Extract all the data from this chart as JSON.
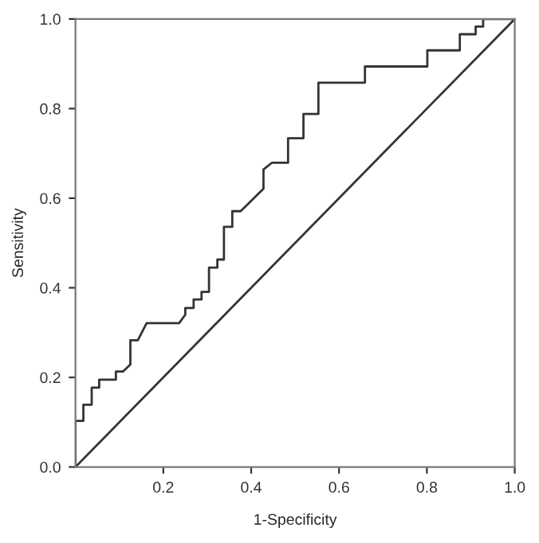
{
  "chart_data": {
    "type": "line",
    "xlabel": "1-Specificity",
    "ylabel": "Sensitivity",
    "xlim": [
      0,
      1
    ],
    "ylim": [
      0,
      1
    ],
    "xticks": [
      {
        "value": 0.2,
        "label": "0.2"
      },
      {
        "value": 0.4,
        "label": "0.4"
      },
      {
        "value": 0.6,
        "label": "0.6"
      },
      {
        "value": 0.8,
        "label": "0.8"
      },
      {
        "value": 1.0,
        "label": "1.0"
      }
    ],
    "yticks": [
      {
        "value": 0.0,
        "label": "0.0"
      },
      {
        "value": 0.2,
        "label": "0.2"
      },
      {
        "value": 0.4,
        "label": "0.4"
      },
      {
        "value": 0.6,
        "label": "0.6"
      },
      {
        "value": 0.8,
        "label": "0.8"
      },
      {
        "value": 1.0,
        "label": "1.0"
      }
    ],
    "marker": "none",
    "line_style": "solid",
    "series": [
      {
        "color": "#333333",
        "x": [
          0,
          0,
          0.018,
          0.018,
          0.037,
          0.037,
          0.054,
          0.054,
          0.092,
          0.092,
          0.108,
          0.125,
          0.125,
          0.142,
          0.162,
          0.236,
          0.25,
          0.25,
          0.269,
          0.269,
          0.287,
          0.287,
          0.304,
          0.304,
          0.323,
          0.323,
          0.338,
          0.338,
          0.357,
          0.357,
          0.376,
          0.428,
          0.428,
          0.447,
          0.484,
          0.484,
          0.519,
          0.519,
          0.553,
          0.553,
          0.659,
          0.659,
          0.801,
          0.801,
          0.875,
          0.875,
          0.911,
          0.911,
          0.928,
          0.928,
          1.0
        ],
        "values": [
          0,
          0.103,
          0.103,
          0.139,
          0.139,
          0.177,
          0.177,
          0.195,
          0.195,
          0.213,
          0.213,
          0.229,
          0.283,
          0.283,
          0.321,
          0.321,
          0.34,
          0.355,
          0.355,
          0.374,
          0.374,
          0.391,
          0.391,
          0.445,
          0.445,
          0.463,
          0.463,
          0.536,
          0.536,
          0.571,
          0.571,
          0.621,
          0.664,
          0.679,
          0.679,
          0.734,
          0.734,
          0.788,
          0.788,
          0.858,
          0.858,
          0.894,
          0.894,
          0.93,
          0.93,
          0.966,
          0.966,
          0.983,
          0.983,
          1.0,
          1.0
        ]
      },
      {
        "color": "#333333",
        "x": [
          0,
          1
        ],
        "values": [
          0,
          1
        ]
      }
    ]
  }
}
